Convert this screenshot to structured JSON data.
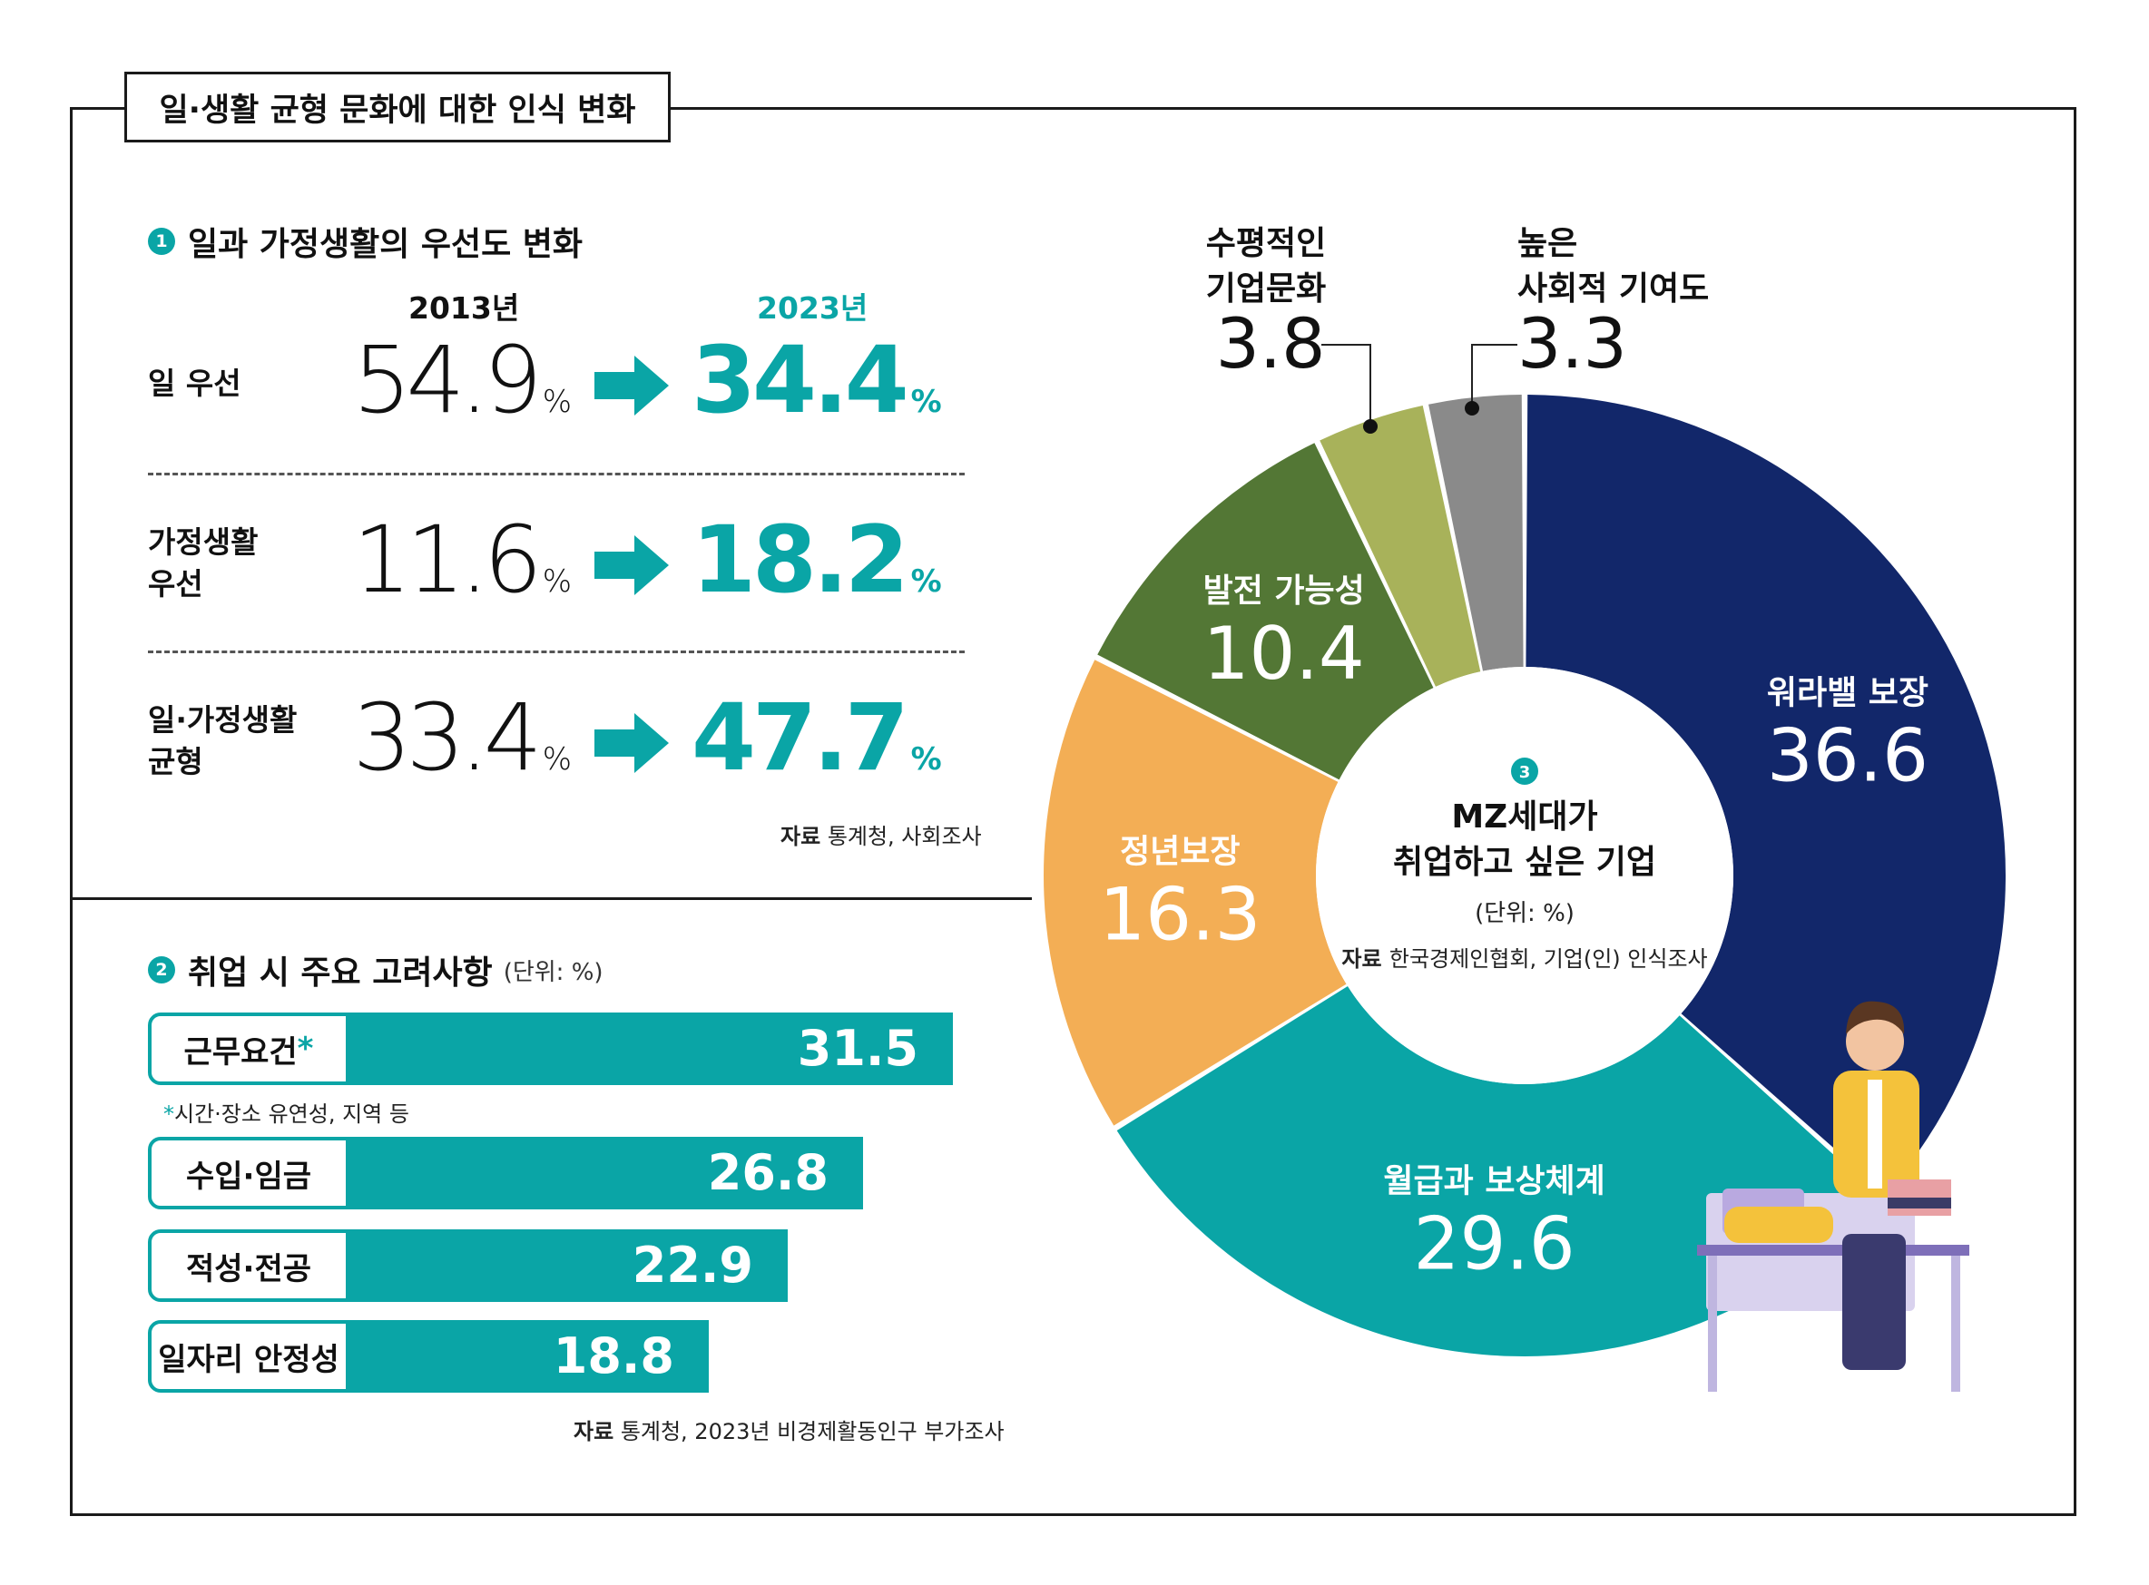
{
  "frame_title": "일·생활 균형 문화에 대한 인식 변화",
  "section1": {
    "badge": "1",
    "title": "일과 가정생활의 우선도 변화",
    "year_old": "2013년",
    "year_new": "2023년",
    "rows": [
      {
        "label_line1": "일 우선",
        "label_line2": "",
        "old": "54.9",
        "new": "34.4"
      },
      {
        "label_line1": "가정생활",
        "label_line2": "우선",
        "old": "11.6",
        "new": "18.2"
      },
      {
        "label_line1": "일·가정생활",
        "label_line2": "균형",
        "old": "33.4",
        "new": "47.7"
      }
    ],
    "pct_symbol": "%",
    "source_bold": "자료",
    "source_text": "통계청, 사회조사"
  },
  "section2": {
    "badge": "2",
    "title": "취업 시 주요 고려사항",
    "unit": "(단위: %)",
    "footnote": "*시간·장소 유연성, 지역 등",
    "source_bold": "자료",
    "source_text": "통계청, 2023년 비경제활동인구 부가조사"
  },
  "section3": {
    "badge": "3",
    "center_line1": "MZ세대가",
    "center_line2": "취업하고 싶은 기업",
    "unit": "(단위: %)",
    "source_bold": "자료",
    "source_text": "한국경제인협회, 기업(인) 인식조사"
  },
  "chart_data": [
    {
      "type": "bar",
      "orientation": "horizontal",
      "title": "취업 시 주요 고려사항",
      "categories": [
        "근무요건",
        "수입·임금",
        "적성·전공",
        "일자리 안정성"
      ],
      "category_marks": [
        "*",
        "",
        "",
        ""
      ],
      "values": [
        31.5,
        26.8,
        22.9,
        18.8
      ],
      "value_labels": [
        "31.5",
        "26.8",
        "22.9",
        "18.8"
      ],
      "xlim": [
        0,
        40
      ],
      "color": "#0aa5a6"
    },
    {
      "type": "pie",
      "donut": true,
      "title": "MZ세대가 취업하고 싶은 기업",
      "labels": [
        "워라밸 보장",
        "월급과 보상체계",
        "정년보장",
        "발전 가능성",
        "수평적인 기업문화",
        "높은 사회적 기여도"
      ],
      "values": [
        36.6,
        29.6,
        16.3,
        10.4,
        3.8,
        3.3
      ],
      "value_labels": [
        "36.6",
        "29.6",
        "16.3",
        "10.4",
        "3.8",
        "3.3"
      ],
      "colors": [
        "#12276a",
        "#0aa5a6",
        "#f3ae55",
        "#537735",
        "#a8b25a",
        "#8a8a8a"
      ],
      "outside_label_lines": {
        "4": [
          "수평적인",
          "기업문화"
        ],
        "5": [
          "높은",
          "사회적 기여도"
        ]
      }
    }
  ]
}
